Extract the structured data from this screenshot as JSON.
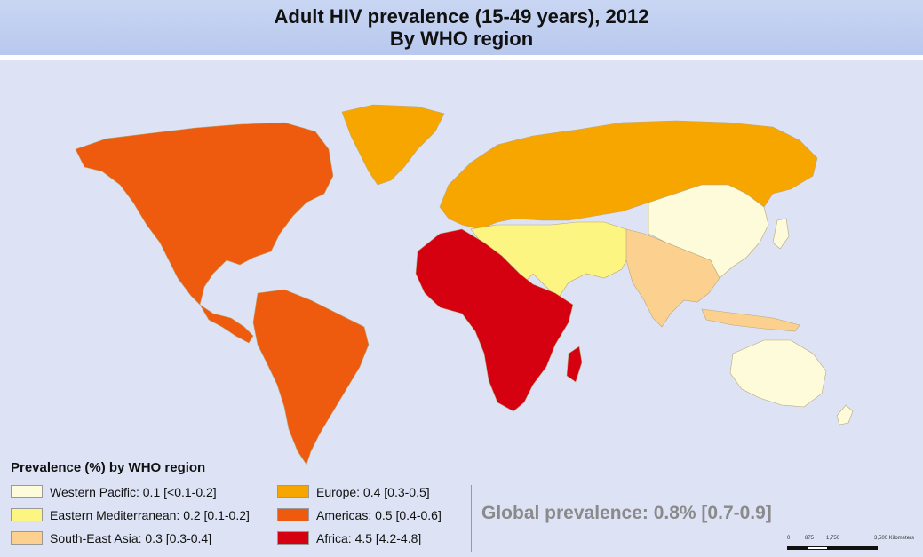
{
  "title": {
    "line1": "Adult HIV prevalence (15-49 years), 2012",
    "line2": "By WHO region"
  },
  "legend": {
    "title": "Prevalence (%) by WHO region",
    "items": [
      {
        "label": "Western Pacific: 0.1 [<0.1-0.2]",
        "color": "#fdfbd9"
      },
      {
        "label": "Eastern Mediterranean: 0.2 [0.1-0.2]",
        "color": "#fcf582"
      },
      {
        "label": "South-East Asia: 0.3 [0.3-0.4]",
        "color": "#fcd08f"
      },
      {
        "label": "Europe: 0.4 [0.3-0.5]",
        "color": "#f7a600"
      },
      {
        "label": "Americas: 0.5 [0.4-0.6]",
        "color": "#ee5b0f"
      },
      {
        "label": "Africa: 4.5 [4.2-4.8]",
        "color": "#d50010"
      }
    ]
  },
  "global_prevalence": "Global prevalence: 0.8% [0.7-0.9]",
  "scale_bar": {
    "labels": [
      "0",
      "875",
      "1,750",
      "3,500 Kilometers"
    ]
  },
  "colors": {
    "ocean": "#dde3f4",
    "title_band": "#bccbef"
  }
}
